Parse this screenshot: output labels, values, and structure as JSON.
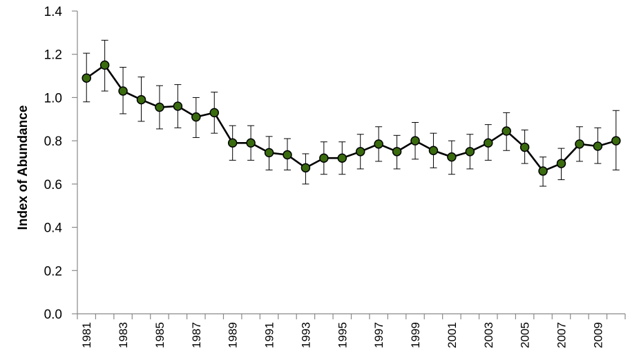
{
  "chart_data": {
    "type": "line",
    "title": "",
    "xlabel": "",
    "ylabel": "Index of Abundance",
    "ylim": [
      0,
      1.4
    ],
    "yticks": [
      "0.0",
      "0.2",
      "0.4",
      "0.6",
      "0.8",
      "1.0",
      "1.2",
      "1.4"
    ],
    "x": [
      1981,
      1982,
      1983,
      1984,
      1985,
      1986,
      1987,
      1988,
      1989,
      1990,
      1991,
      1992,
      1993,
      1994,
      1995,
      1996,
      1997,
      1998,
      1999,
      2000,
      2001,
      2002,
      2003,
      2004,
      2005,
      2006,
      2007,
      2008,
      2009,
      2010
    ],
    "xtick_labels": [
      "1981",
      "1983",
      "1985",
      "1987",
      "1989",
      "1991",
      "1993",
      "1995",
      "1997",
      "1999",
      "2001",
      "2003",
      "2005",
      "2007",
      "2009"
    ],
    "series": [
      {
        "values": [
          1.09,
          1.15,
          1.03,
          0.99,
          0.955,
          0.96,
          0.91,
          0.93,
          0.79,
          0.79,
          0.745,
          0.735,
          0.675,
          0.72,
          0.72,
          0.75,
          0.785,
          0.75,
          0.8,
          0.755,
          0.725,
          0.75,
          0.79,
          0.845,
          0.77,
          0.66,
          0.695,
          0.785,
          0.775,
          0.8
        ],
        "error_lower": [
          0.98,
          1.03,
          0.925,
          0.89,
          0.855,
          0.86,
          0.815,
          0.835,
          0.71,
          0.71,
          0.665,
          0.665,
          0.6,
          0.645,
          0.645,
          0.67,
          0.705,
          0.67,
          0.715,
          0.675,
          0.645,
          0.67,
          0.71,
          0.755,
          0.695,
          0.59,
          0.62,
          0.705,
          0.695,
          0.665
        ],
        "error_upper": [
          1.205,
          1.265,
          1.14,
          1.095,
          1.055,
          1.06,
          1.0,
          1.025,
          0.87,
          0.87,
          0.82,
          0.81,
          0.74,
          0.795,
          0.795,
          0.83,
          0.865,
          0.825,
          0.885,
          0.835,
          0.8,
          0.83,
          0.875,
          0.93,
          0.85,
          0.725,
          0.765,
          0.865,
          0.86,
          0.94
        ]
      }
    ],
    "colors": {
      "marker_fill": "#3a6b0e",
      "line": "#000000",
      "axis": "#888888"
    },
    "grid": false,
    "legend": "none"
  }
}
